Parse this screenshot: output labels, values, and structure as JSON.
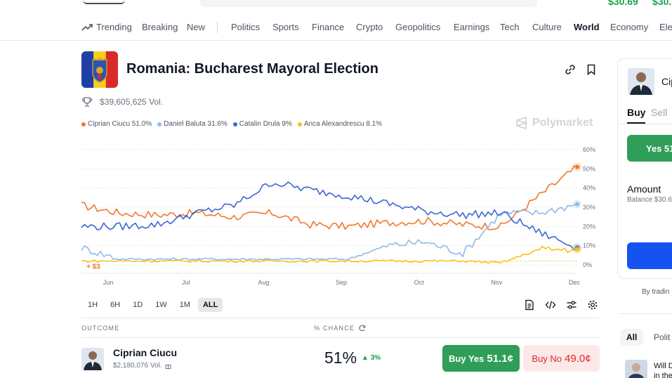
{
  "topbar": {
    "balance_1": "$30.69",
    "balance_2": "$30."
  },
  "nav": {
    "items": [
      {
        "label": "Trending",
        "icon": "trending-icon"
      },
      {
        "label": "Breaking"
      },
      {
        "label": "New"
      },
      {
        "label": "Politics"
      },
      {
        "label": "Sports"
      },
      {
        "label": "Finance"
      },
      {
        "label": "Crypto"
      },
      {
        "label": "Geopolitics"
      },
      {
        "label": "Earnings"
      },
      {
        "label": "Tech"
      },
      {
        "label": "Culture"
      },
      {
        "label": "World",
        "active": true
      },
      {
        "label": "Economy"
      },
      {
        "label": "Ele"
      }
    ]
  },
  "market": {
    "title": "Romania: Bucharest Mayoral Election",
    "volume": "$39,605,625 Vol.",
    "watermark": "Polymarket"
  },
  "legend": [
    {
      "label": "Ciprian Ciucu 51.0%",
      "color": "#f0782d"
    },
    {
      "label": "Daniel Baluta 31.6%",
      "color": "#8dbbe8"
    },
    {
      "label": "Catalin Drula 9%",
      "color": "#3b66d6"
    },
    {
      "label": "Anca Alexandrescu 8.1%",
      "color": "#f5c211"
    }
  ],
  "chart_data": {
    "type": "line",
    "x_ticks": [
      "Jun",
      "Jul",
      "Aug",
      "Sep",
      "Oct",
      "Nov",
      "Dec"
    ],
    "y_ticks": [
      "60%",
      "50%",
      "40%",
      "30%",
      "20%",
      "10%",
      "0%"
    ],
    "ylim": [
      0,
      60
    ],
    "annotation": "+ $3",
    "x": [
      "May 15",
      "Jun 1",
      "Jun 15",
      "Jul 1",
      "Jul 15",
      "Aug 1",
      "Aug 15",
      "Sep 1",
      "Sep 15",
      "Oct 1",
      "Oct 15",
      "Nov 1",
      "Nov 15",
      "Dec 1"
    ],
    "series": [
      {
        "name": "Ciprian Ciucu",
        "color": "#f0782d",
        "values": [
          31,
          27,
          26,
          27,
          25,
          27,
          21,
          20,
          22,
          23,
          21,
          20,
          36,
          51
        ]
      },
      {
        "name": "Daniel Baluta",
        "color": "#8dbbe8",
        "values": [
          9,
          3,
          3,
          3,
          3,
          3,
          3,
          3,
          10,
          12,
          6,
          27,
          27,
          31.6
        ]
      },
      {
        "name": "Catalin Drula",
        "color": "#3b66d6",
        "values": [
          20,
          20,
          21,
          27,
          31,
          43,
          39,
          36,
          32,
          28,
          26,
          27,
          17,
          9
        ]
      },
      {
        "name": "Anca Alexandrescu",
        "color": "#f5c211",
        "values": [
          2,
          2,
          2,
          2,
          2,
          2,
          2,
          2,
          2,
          2,
          2,
          1,
          8,
          8.1
        ]
      }
    ]
  },
  "ranges": [
    {
      "label": "1H"
    },
    {
      "label": "6H"
    },
    {
      "label": "1D"
    },
    {
      "label": "1W"
    },
    {
      "label": "1M"
    },
    {
      "label": "ALL",
      "active": true
    }
  ],
  "table": {
    "outcome_header": "OUTCOME",
    "chance_header": "% CHANCE",
    "rows": [
      {
        "name": "Ciprian Ciucu",
        "volume": "$2,180,076 Vol.",
        "chance": "51%",
        "delta": "3%",
        "buy_yes_label": "Buy Yes",
        "buy_yes_price": "51.1¢",
        "buy_no_label": "Buy No",
        "buy_no_price": "49.0¢"
      }
    ]
  },
  "trade_panel": {
    "name": "Cip",
    "tab_buy": "Buy",
    "tab_sell": "Sell",
    "yes_label": "Yes 51",
    "amount_label": "Amount",
    "balance": "Balance $30.6"
  },
  "right": {
    "by_trading": "By tradin",
    "chip_all": "All",
    "chip_politics": "Polit",
    "news_line_1": "Will D",
    "news_line_2": "in the"
  }
}
